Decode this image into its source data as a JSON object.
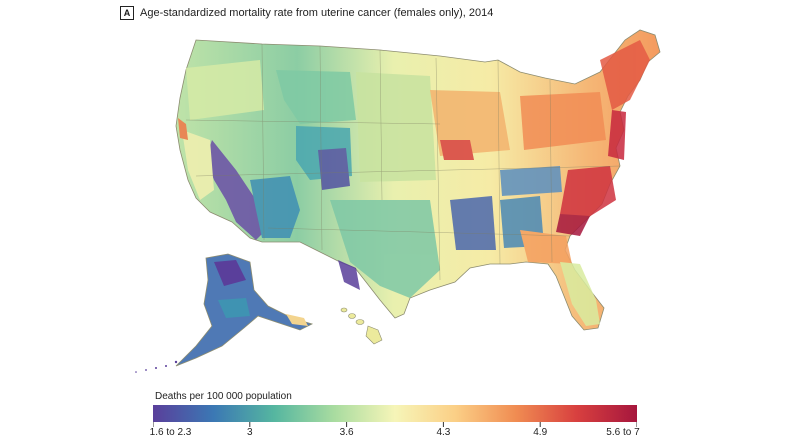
{
  "panel": {
    "letter": "A",
    "title": "Age-standardized mortality rate from uterine cancer (females only), 2014"
  },
  "legend": {
    "title": "Deaths per 100 000 population",
    "tick_labels": [
      "1.6 to 2.3",
      "3",
      "3.6",
      "4.3",
      "4.9",
      "5.6 to 7"
    ],
    "color_stops": [
      "#5a3f9b",
      "#3b78b4",
      "#55b6a0",
      "#a9dca0",
      "#f6f5b8",
      "#fbcf86",
      "#f08c52",
      "#d8403f",
      "#a6163d"
    ]
  },
  "map": {
    "subject": "US counties",
    "palette": {
      "low": "#5a3f9b",
      "mid_low": "#55b6a0",
      "mid": "#f6f5b8",
      "mid_high": "#f08c52",
      "high": "#a6163d"
    }
  }
}
